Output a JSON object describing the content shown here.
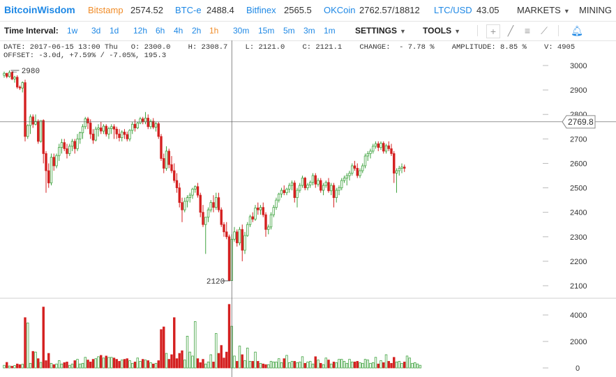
{
  "topbar": {
    "brand": "BitcoinWisdom",
    "markets": [
      {
        "name": "Bitstamp",
        "price": "2574.52",
        "active": true
      },
      {
        "name": "BTC-e",
        "price": "2488.4",
        "active": false
      },
      {
        "name": "Bitfinex",
        "price": "2565.5",
        "active": false
      },
      {
        "name": "OKCoin",
        "price": "2762.57/18812",
        "active": false
      },
      {
        "name": "LTC/USD",
        "price": "43.05",
        "active": false
      }
    ],
    "menu_markets": "MARKETS",
    "menu_mining": "MINING"
  },
  "toolbar": {
    "time_interval_label": "Time Interval:",
    "intervals": [
      "1w",
      "3d",
      "1d",
      "12h",
      "6h",
      "4h",
      "2h",
      "1h",
      "30m",
      "15m",
      "5m",
      "3m",
      "1m"
    ],
    "active_interval": "1h",
    "settings": "SETTINGS",
    "tools": "TOOLS",
    "tool_icons": [
      "crosshair-icon",
      "line-icon",
      "fib-lines-icon",
      "fan-icon",
      "bell-icon"
    ]
  },
  "info": {
    "line1": "DATE: 2017-06-15 13:00 Thu   O: 2300.0    H: 2308.7    L: 2121.0    C: 2121.1    CHANGE:  - 7.78 %    AMPLITUDE: 8.85 %    V: 4905",
    "line2": "OFFSET: -3.0d, +7.59% / -7.05%, 195.3"
  },
  "chart_data": {
    "type": "candlestick",
    "price_axis": {
      "min": 2100,
      "max": 3000,
      "ticks": [
        2100,
        2200,
        2300,
        2400,
        2500,
        2600,
        2700,
        2800,
        2900,
        3000
      ],
      "position": "right"
    },
    "volume_axis": {
      "min": 0,
      "max": 4000,
      "ticks": [
        0,
        2000,
        4000
      ],
      "position": "right"
    },
    "crosshair_price": "2769.8",
    "high_label": "2980",
    "low_label": "2120",
    "colors": {
      "up": "#3fa33f",
      "down": "#d42020",
      "up_volume_fill": "#ffffff"
    },
    "candles_ohlc": [
      [
        2960,
        2975,
        2950,
        2968
      ],
      [
        2968,
        2970,
        2948,
        2955
      ],
      [
        2955,
        2980,
        2950,
        2972
      ],
      [
        2972,
        2976,
        2940,
        2945
      ],
      [
        2945,
        2958,
        2930,
        2952
      ],
      [
        2952,
        2960,
        2905,
        2912
      ],
      [
        2912,
        2918,
        2900,
        2908
      ],
      [
        2908,
        2935,
        2890,
        2930
      ],
      [
        2930,
        2942,
        2690,
        2710
      ],
      [
        2710,
        2760,
        2700,
        2755
      ],
      [
        2755,
        2800,
        2720,
        2790
      ],
      [
        2790,
        2800,
        2745,
        2760
      ],
      [
        2760,
        2800,
        2755,
        2772
      ],
      [
        2772,
        2780,
        2680,
        2690
      ],
      [
        2690,
        2770,
        2685,
        2775
      ],
      [
        2775,
        2780,
        2600,
        2640
      ],
      [
        2640,
        2650,
        2480,
        2570
      ],
      [
        2570,
        2600,
        2500,
        2520
      ],
      [
        2520,
        2640,
        2510,
        2625
      ],
      [
        2625,
        2640,
        2570,
        2590
      ],
      [
        2590,
        2640,
        2580,
        2632
      ],
      [
        2632,
        2680,
        2610,
        2665
      ],
      [
        2665,
        2700,
        2640,
        2685
      ],
      [
        2685,
        2700,
        2650,
        2660
      ],
      [
        2660,
        2680,
        2620,
        2640
      ],
      [
        2640,
        2680,
        2630,
        2670
      ],
      [
        2670,
        2700,
        2650,
        2690
      ],
      [
        2690,
        2700,
        2640,
        2660
      ],
      [
        2660,
        2720,
        2650,
        2700
      ],
      [
        2700,
        2730,
        2680,
        2725
      ],
      [
        2725,
        2760,
        2700,
        2750
      ],
      [
        2750,
        2790,
        2740,
        2782
      ],
      [
        2782,
        2790,
        2740,
        2765
      ],
      [
        2765,
        2780,
        2700,
        2720
      ],
      [
        2720,
        2740,
        2680,
        2695
      ],
      [
        2695,
        2750,
        2690,
        2740
      ],
      [
        2740,
        2760,
        2710,
        2745
      ],
      [
        2745,
        2770,
        2720,
        2732
      ],
      [
        2732,
        2760,
        2720,
        2752
      ],
      [
        2752,
        2760,
        2710,
        2720
      ],
      [
        2720,
        2750,
        2700,
        2742
      ],
      [
        2742,
        2760,
        2720,
        2750
      ],
      [
        2750,
        2760,
        2700,
        2740
      ],
      [
        2740,
        2750,
        2700,
        2720
      ],
      [
        2720,
        2740,
        2690,
        2705
      ],
      [
        2705,
        2735,
        2690,
        2728
      ],
      [
        2728,
        2740,
        2700,
        2718
      ],
      [
        2718,
        2730,
        2690,
        2700
      ],
      [
        2700,
        2740,
        2690,
        2735
      ],
      [
        2735,
        2770,
        2720,
        2760
      ],
      [
        2760,
        2780,
        2730,
        2745
      ],
      [
        2745,
        2770,
        2740,
        2765
      ],
      [
        2765,
        2790,
        2760,
        2782
      ],
      [
        2782,
        2790,
        2760,
        2770
      ],
      [
        2770,
        2810,
        2760,
        2785
      ],
      [
        2785,
        2800,
        2740,
        2750
      ],
      [
        2750,
        2780,
        2740,
        2772
      ],
      [
        2772,
        2785,
        2740,
        2748
      ],
      [
        2748,
        2770,
        2730,
        2762
      ],
      [
        2762,
        2770,
        2700,
        2710
      ],
      [
        2710,
        2720,
        2610,
        2620
      ],
      [
        2620,
        2640,
        2560,
        2580
      ],
      [
        2580,
        2670,
        2570,
        2650
      ],
      [
        2650,
        2660,
        2580,
        2595
      ],
      [
        2595,
        2630,
        2560,
        2570
      ],
      [
        2570,
        2600,
        2520,
        2530
      ],
      [
        2530,
        2560,
        2480,
        2500
      ],
      [
        2500,
        2520,
        2420,
        2440
      ],
      [
        2440,
        2460,
        2360,
        2410
      ],
      [
        2410,
        2460,
        2400,
        2445
      ],
      [
        2445,
        2470,
        2420,
        2460
      ],
      [
        2460,
        2480,
        2440,
        2470
      ],
      [
        2470,
        2500,
        2455,
        2495
      ],
      [
        2495,
        2510,
        2480,
        2505
      ],
      [
        2505,
        2520,
        2460,
        2470
      ],
      [
        2470,
        2480,
        2380,
        2400
      ],
      [
        2400,
        2430,
        2340,
        2350
      ],
      [
        2350,
        2370,
        2230,
        2380
      ],
      [
        2380,
        2420,
        2360,
        2410
      ],
      [
        2410,
        2450,
        2400,
        2440
      ],
      [
        2440,
        2470,
        2400,
        2420
      ],
      [
        2420,
        2480,
        2410,
        2460
      ],
      [
        2460,
        2480,
        2400,
        2410
      ],
      [
        2410,
        2420,
        2340,
        2350
      ],
      [
        2350,
        2360,
        2300,
        2320
      ],
      [
        2320,
        2360,
        2290,
        2300
      ],
      [
        2300,
        2309,
        2121,
        2121
      ],
      [
        2121,
        2310,
        2120,
        2290
      ],
      [
        2290,
        2340,
        2280,
        2320
      ],
      [
        2320,
        2330,
        2260,
        2275
      ],
      [
        2275,
        2340,
        2265,
        2330
      ],
      [
        2330,
        2350,
        2200,
        2245
      ],
      [
        2245,
        2320,
        2230,
        2305
      ],
      [
        2305,
        2360,
        2300,
        2350
      ],
      [
        2350,
        2390,
        2340,
        2382
      ],
      [
        2382,
        2400,
        2360,
        2372
      ],
      [
        2372,
        2430,
        2365,
        2418
      ],
      [
        2418,
        2440,
        2390,
        2410
      ],
      [
        2410,
        2430,
        2390,
        2420
      ],
      [
        2420,
        2440,
        2380,
        2390
      ],
      [
        2390,
        2400,
        2300,
        2330
      ],
      [
        2330,
        2350,
        2310,
        2340
      ],
      [
        2340,
        2400,
        2330,
        2390
      ],
      [
        2390,
        2430,
        2380,
        2420
      ],
      [
        2420,
        2460,
        2410,
        2450
      ],
      [
        2450,
        2480,
        2440,
        2475
      ],
      [
        2475,
        2500,
        2460,
        2490
      ],
      [
        2490,
        2510,
        2470,
        2480
      ],
      [
        2480,
        2500,
        2470,
        2495
      ],
      [
        2495,
        2520,
        2480,
        2510
      ],
      [
        2510,
        2530,
        2490,
        2520
      ],
      [
        2520,
        2530,
        2440,
        2460
      ],
      [
        2460,
        2500,
        2420,
        2490
      ],
      [
        2490,
        2520,
        2480,
        2510
      ],
      [
        2510,
        2550,
        2500,
        2540
      ],
      [
        2540,
        2545,
        2490,
        2500
      ],
      [
        2500,
        2520,
        2490,
        2512
      ],
      [
        2512,
        2530,
        2500,
        2522
      ],
      [
        2522,
        2560,
        2510,
        2550
      ],
      [
        2550,
        2560,
        2500,
        2515
      ],
      [
        2515,
        2540,
        2505,
        2530
      ],
      [
        2530,
        2540,
        2480,
        2490
      ],
      [
        2490,
        2520,
        2470,
        2510
      ],
      [
        2510,
        2530,
        2500,
        2522
      ],
      [
        2522,
        2540,
        2480,
        2488
      ],
      [
        2488,
        2520,
        2470,
        2510
      ],
      [
        2510,
        2520,
        2420,
        2460
      ],
      [
        2460,
        2500,
        2440,
        2490
      ],
      [
        2490,
        2510,
        2470,
        2500
      ],
      [
        2500,
        2540,
        2490,
        2530
      ],
      [
        2530,
        2550,
        2520,
        2540
      ],
      [
        2540,
        2560,
        2510,
        2550
      ],
      [
        2550,
        2570,
        2530,
        2560
      ],
      [
        2560,
        2600,
        2550,
        2590
      ],
      [
        2590,
        2610,
        2570,
        2580
      ],
      [
        2580,
        2600,
        2540,
        2550
      ],
      [
        2550,
        2580,
        2540,
        2570
      ],
      [
        2570,
        2600,
        2560,
        2590
      ],
      [
        2590,
        2640,
        2580,
        2630
      ],
      [
        2630,
        2650,
        2610,
        2640
      ],
      [
        2640,
        2660,
        2620,
        2650
      ],
      [
        2650,
        2680,
        2640,
        2670
      ],
      [
        2670,
        2690,
        2660,
        2680
      ],
      [
        2680,
        2690,
        2650,
        2665
      ],
      [
        2665,
        2690,
        2655,
        2682
      ],
      [
        2682,
        2690,
        2640,
        2650
      ],
      [
        2650,
        2680,
        2640,
        2672
      ],
      [
        2672,
        2690,
        2650,
        2660
      ],
      [
        2660,
        2680,
        2630,
        2640
      ],
      [
        2640,
        2650,
        2520,
        2560
      ],
      [
        2560,
        2580,
        2480,
        2570
      ],
      [
        2570,
        2590,
        2550,
        2580
      ],
      [
        2580,
        2600,
        2560,
        2585
      ],
      [
        2585,
        2595,
        2565,
        2580
      ]
    ],
    "volumes": [
      200,
      420,
      150,
      130,
      180,
      300,
      250,
      280,
      3800,
      3400,
      350,
      1250,
      1200,
      700,
      420,
      4600,
      550,
      1100,
      350,
      250,
      300,
      550,
      300,
      400,
      450,
      200,
      300,
      550,
      650,
      300,
      350,
      800,
      600,
      450,
      650,
      700,
      850,
      950,
      750,
      900,
      800,
      800,
      750,
      650,
      500,
      600,
      650,
      700,
      550,
      350,
      450,
      750,
      500,
      650,
      600,
      550,
      400,
      300,
      350,
      550,
      2900,
      3100,
      1100,
      650,
      1000,
      3800,
      700,
      1100,
      1300,
      600,
      2400,
      1200,
      900,
      3500,
      700,
      400,
      650,
      300,
      450,
      1000,
      450,
      2600,
      1100,
      1700,
      750,
      1200,
      4800,
      3150,
      900,
      500,
      1650,
      1000,
      550,
      1500,
      500,
      500,
      1200,
      500,
      350,
      300,
      250,
      250,
      500,
      450,
      450,
      700,
      400,
      700,
      950,
      400,
      500,
      500,
      400,
      450,
      850,
      350,
      450,
      500,
      300,
      850,
      600,
      350,
      250,
      750,
      600,
      300,
      450,
      400,
      650,
      650,
      500,
      350,
      650,
      450,
      450,
      500,
      400,
      350,
      650,
      600,
      350,
      400,
      800,
      300,
      550,
      400,
      1000,
      500,
      350,
      800,
      450,
      500,
      350,
      450,
      900,
      750,
      350,
      400,
      300,
      200
    ],
    "annotations": [
      {
        "type": "crosshair",
        "price": 2769.8,
        "index": 87
      }
    ]
  }
}
